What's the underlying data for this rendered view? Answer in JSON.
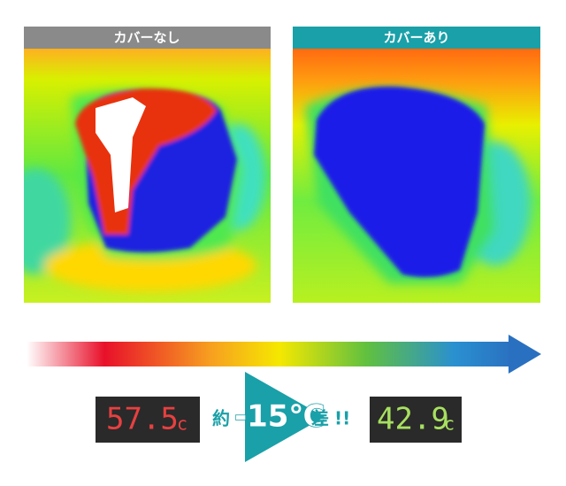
{
  "panels": [
    {
      "label": "カバーなし"
    },
    {
      "label": "カバーあり"
    }
  ],
  "comparison": {
    "left_reading": {
      "value": 57.5,
      "unit": "c"
    },
    "prefix": "約",
    "difference": "-15℃",
    "suffix": "差",
    "exclaim": "!!",
    "right_reading": {
      "value": 42.9,
      "unit": "c"
    }
  }
}
